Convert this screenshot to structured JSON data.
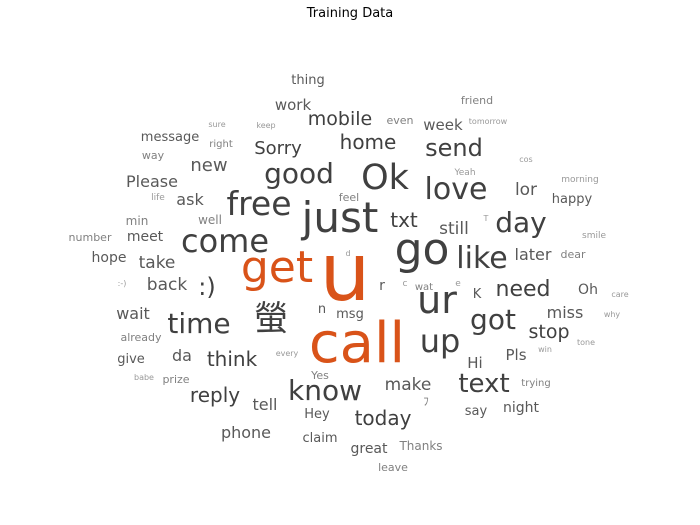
{
  "chart_data": {
    "type": "wordcloud",
    "title": "Training Data",
    "colors": {
      "highlight": "#d95319",
      "primary": "#404040",
      "secondary": "#595959",
      "muted": "#808080",
      "faint": "#999999"
    },
    "words": [
      {
        "text": "u",
        "weight": 100,
        "color": "highlight"
      },
      {
        "text": "call",
        "weight": 68,
        "color": "highlight"
      },
      {
        "text": "get",
        "weight": 60,
        "color": "highlight"
      },
      {
        "text": "go",
        "weight": 50,
        "color": "primary"
      },
      {
        "text": "just",
        "weight": 48,
        "color": "primary"
      },
      {
        "text": "ur",
        "weight": 40,
        "color": "primary"
      },
      {
        "text": "Ok",
        "weight": 40,
        "color": "primary"
      },
      {
        "text": "螢",
        "weight": 36,
        "color": "primary"
      },
      {
        "text": "come",
        "weight": 35,
        "color": "primary"
      },
      {
        "text": "free",
        "weight": 35,
        "color": "primary"
      },
      {
        "text": "up",
        "weight": 34,
        "color": "primary"
      },
      {
        "text": "love",
        "weight": 33,
        "color": "primary"
      },
      {
        "text": "like",
        "weight": 31,
        "color": "primary"
      },
      {
        "text": "time",
        "weight": 30,
        "color": "primary"
      },
      {
        "text": "got",
        "weight": 30,
        "color": "primary"
      },
      {
        "text": "know",
        "weight": 30,
        "color": "primary"
      },
      {
        "text": "good",
        "weight": 29,
        "color": "primary"
      },
      {
        "text": "day",
        "weight": 28,
        "color": "primary"
      },
      {
        "text": "text",
        "weight": 28,
        "color": "primary"
      },
      {
        "text": ":)",
        "weight": 26,
        "color": "primary"
      },
      {
        "text": "send",
        "weight": 24,
        "color": "primary"
      },
      {
        "text": "need",
        "weight": 23,
        "color": "primary"
      },
      {
        "text": "think",
        "weight": 22,
        "color": "primary"
      },
      {
        "text": "today",
        "weight": 21,
        "color": "primary"
      },
      {
        "text": "reply",
        "weight": 21,
        "color": "primary"
      },
      {
        "text": "home",
        "weight": 21,
        "color": "primary"
      },
      {
        "text": "txt",
        "weight": 21,
        "color": "primary"
      },
      {
        "text": "mobile",
        "weight": 20,
        "color": "primary"
      },
      {
        "text": "stop",
        "weight": 20,
        "color": "primary"
      },
      {
        "text": "Sorry",
        "weight": 19,
        "color": "primary"
      },
      {
        "text": "make",
        "weight": 18,
        "color": "secondary"
      },
      {
        "text": "back",
        "weight": 18,
        "color": "secondary"
      },
      {
        "text": "take",
        "weight": 18,
        "color": "secondary"
      },
      {
        "text": "new",
        "weight": 18,
        "color": "secondary"
      },
      {
        "text": "lor",
        "weight": 17,
        "color": "secondary"
      },
      {
        "text": "still",
        "weight": 17,
        "color": "secondary"
      },
      {
        "text": "miss",
        "weight": 16,
        "color": "secondary"
      },
      {
        "text": "ask",
        "weight": 16,
        "color": "secondary"
      },
      {
        "text": "Please",
        "weight": 16,
        "color": "secondary"
      },
      {
        "text": "phone",
        "weight": 16,
        "color": "secondary"
      },
      {
        "text": "tell",
        "weight": 16,
        "color": "secondary"
      },
      {
        "text": "wait",
        "weight": 15,
        "color": "secondary"
      },
      {
        "text": "work",
        "weight": 15,
        "color": "secondary"
      },
      {
        "text": "week",
        "weight": 15,
        "color": "secondary"
      },
      {
        "text": "da",
        "weight": 15,
        "color": "secondary"
      },
      {
        "text": "later",
        "weight": 15,
        "color": "secondary"
      },
      {
        "text": "Pls",
        "weight": 15,
        "color": "secondary"
      },
      {
        "text": "Hi",
        "weight": 15,
        "color": "secondary"
      },
      {
        "text": "night",
        "weight": 14,
        "color": "secondary"
      },
      {
        "text": "meet",
        "weight": 14,
        "color": "secondary"
      },
      {
        "text": "hope",
        "weight": 14,
        "color": "secondary"
      },
      {
        "text": "great",
        "weight": 14,
        "color": "secondary"
      },
      {
        "text": "Oh",
        "weight": 14,
        "color": "secondary"
      },
      {
        "text": "happy",
        "weight": 13,
        "color": "secondary"
      },
      {
        "text": "message",
        "weight": 13,
        "color": "secondary"
      },
      {
        "text": "msg",
        "weight": 13,
        "color": "secondary"
      },
      {
        "text": "say",
        "weight": 13,
        "color": "secondary"
      },
      {
        "text": "claim",
        "weight": 13,
        "color": "secondary"
      },
      {
        "text": "Hey",
        "weight": 13,
        "color": "secondary"
      },
      {
        "text": "thing",
        "weight": 13,
        "color": "secondary"
      },
      {
        "text": "give",
        "weight": 13,
        "color": "secondary"
      },
      {
        "text": "n",
        "weight": 13,
        "color": "secondary"
      },
      {
        "text": "r",
        "weight": 13,
        "color": "secondary"
      },
      {
        "text": "K",
        "weight": 13,
        "color": "secondary"
      },
      {
        "text": "Thanks",
        "weight": 12,
        "color": "muted"
      },
      {
        "text": "well",
        "weight": 12,
        "color": "muted"
      },
      {
        "text": "min",
        "weight": 12,
        "color": "muted"
      },
      {
        "text": "number",
        "weight": 11,
        "color": "muted"
      },
      {
        "text": "leave",
        "weight": 11,
        "color": "muted"
      },
      {
        "text": "prize",
        "weight": 11,
        "color": "muted"
      },
      {
        "text": "already",
        "weight": 11,
        "color": "muted"
      },
      {
        "text": "feel",
        "weight": 11,
        "color": "muted"
      },
      {
        "text": "even",
        "weight": 11,
        "color": "muted"
      },
      {
        "text": "wat",
        "weight": 11,
        "color": "muted"
      },
      {
        "text": "dear",
        "weight": 11,
        "color": "muted"
      },
      {
        "text": "friend",
        "weight": 11,
        "color": "muted"
      },
      {
        "text": "way",
        "weight": 11,
        "color": "muted"
      },
      {
        "text": "right",
        "weight": 11,
        "color": "muted"
      },
      {
        "text": "Yes",
        "weight": 11,
        "color": "muted"
      },
      {
        "text": "trying",
        "weight": 10,
        "color": "muted"
      },
      {
        "text": "morning",
        "weight": 10,
        "color": "faint"
      },
      {
        "text": "smile",
        "weight": 10,
        "color": "faint"
      },
      {
        "text": "life",
        "weight": 10,
        "color": "faint"
      },
      {
        "text": "Yeah",
        "weight": 10,
        "color": "faint"
      },
      {
        "text": "ﾌ",
        "weight": 10,
        "color": "muted"
      },
      {
        "text": "why",
        "weight": 9,
        "color": "faint"
      },
      {
        "text": "care",
        "weight": 9,
        "color": "faint"
      },
      {
        "text": "tone",
        "weight": 9,
        "color": "faint"
      },
      {
        "text": "win",
        "weight": 9,
        "color": "faint"
      },
      {
        "text": "babe",
        "weight": 9,
        "color": "faint"
      },
      {
        "text": "every",
        "weight": 9,
        "color": "faint"
      },
      {
        "text": "sure",
        "weight": 9,
        "color": "faint"
      },
      {
        "text": "keep",
        "weight": 9,
        "color": "faint"
      },
      {
        "text": "tomorrow",
        "weight": 9,
        "color": "faint"
      },
      {
        "text": "cos",
        "weight": 9,
        "color": "faint"
      },
      {
        "text": ":-)",
        "weight": 9,
        "color": "faint"
      },
      {
        "text": "c",
        "weight": 9,
        "color": "faint"
      },
      {
        "text": "e",
        "weight": 9,
        "color": "faint"
      },
      {
        "text": "d",
        "weight": 8,
        "color": "faint"
      },
      {
        "text": "T",
        "weight": 8,
        "color": "faint"
      }
    ]
  }
}
